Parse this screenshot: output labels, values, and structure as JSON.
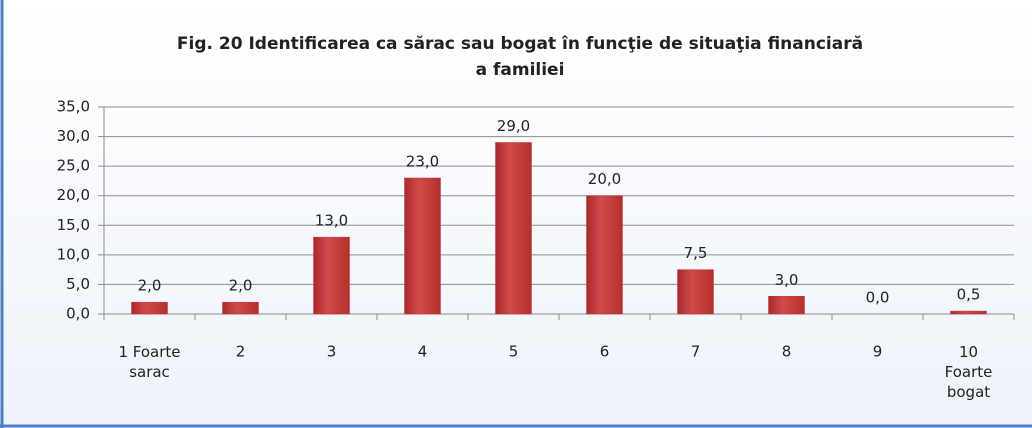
{
  "chart_data": {
    "type": "bar",
    "title": [
      "Fig. 20  Identificarea ca sărac sau bogat în funcţie de situaţia financiară",
      "a familiei"
    ],
    "categories": [
      "1 Foarte\nsarac",
      "2",
      "3",
      "4",
      "5",
      "6",
      "7",
      "8",
      "9",
      "10\nFoarte\nbogat"
    ],
    "values": [
      2.0,
      2.0,
      13.0,
      23.0,
      29.0,
      20.0,
      7.5,
      3.0,
      0.0,
      0.5
    ],
    "value_labels": [
      "2,0",
      "2,0",
      "13,0",
      "23,0",
      "29,0",
      "20,0",
      "7,5",
      "3,0",
      "0,0",
      "0,5"
    ],
    "color": "#c0393b",
    "ylim": [
      0,
      35
    ],
    "yticks": [
      {
        "value": 0,
        "label": "0,0"
      },
      {
        "value": 5,
        "label": "5,0"
      },
      {
        "value": 10,
        "label": "10,0"
      },
      {
        "value": 15,
        "label": "15,0"
      },
      {
        "value": 20,
        "label": "20,0"
      },
      {
        "value": 25,
        "label": "25,0"
      },
      {
        "value": 30,
        "label": "30,0"
      },
      {
        "value": 35,
        "label": "35,0"
      }
    ],
    "grid": true
  }
}
